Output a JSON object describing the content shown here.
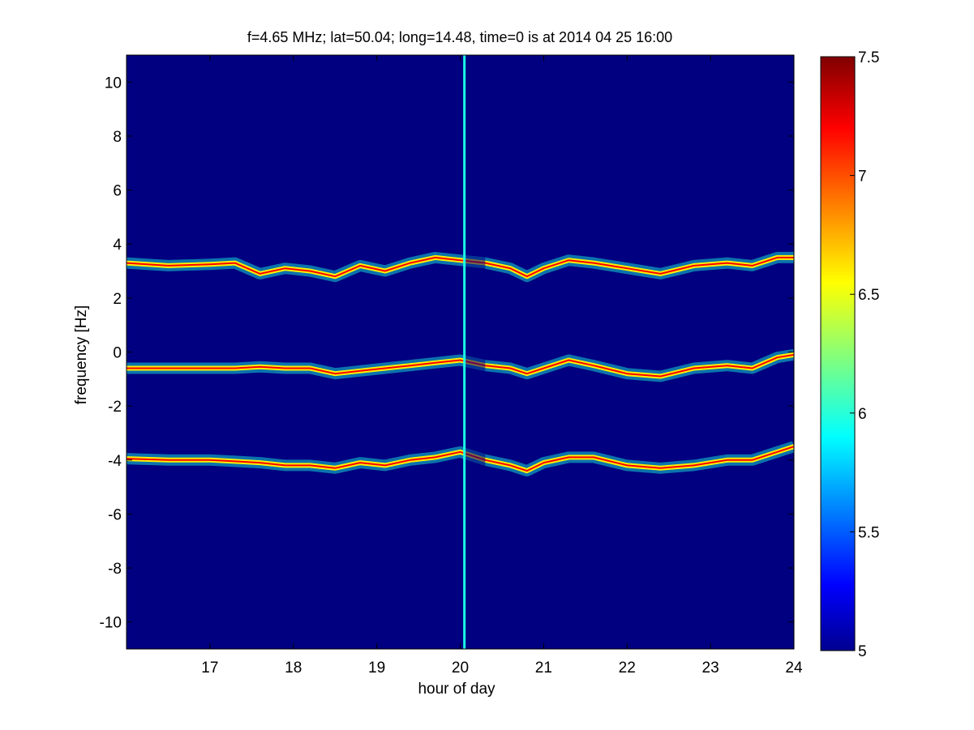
{
  "chart_data": {
    "type": "heatmap",
    "title": "f=4.65 MHz;  lat=50.04; long=14.48, time=0 is at 2014 04 25 16:00",
    "xlabel": "hour of day",
    "ylabel": "frequency [Hz]",
    "xlim": [
      16.0,
      24.0
    ],
    "ylim": [
      -11.0,
      11.0
    ],
    "x_ticks": [
      17,
      18,
      19,
      20,
      21,
      22,
      23,
      24
    ],
    "y_ticks": [
      -10,
      -8,
      -6,
      -4,
      -2,
      0,
      2,
      4,
      6,
      8,
      10
    ],
    "colorbar": {
      "range": [
        5,
        7.5
      ],
      "ticks": [
        "5",
        "5.5",
        "6",
        "6.5",
        "7",
        "7.5"
      ],
      "colormap": "jet"
    },
    "background_level": 5,
    "vertical_line": {
      "x": 20.05,
      "level": 6
    },
    "gap": {
      "x_start": 20.05,
      "x_end": 20.3
    },
    "traces": [
      {
        "name": "upper",
        "level": 7.2,
        "x": [
          16.0,
          16.5,
          17.0,
          17.3,
          17.6,
          17.9,
          18.2,
          18.5,
          18.8,
          19.1,
          19.4,
          19.7,
          20.0,
          20.3,
          20.6,
          20.8,
          21.0,
          21.3,
          21.6,
          22.0,
          22.4,
          22.8,
          23.2,
          23.5,
          23.8,
          24.0
        ],
        "y": [
          3.3,
          3.2,
          3.25,
          3.3,
          2.9,
          3.1,
          3.0,
          2.8,
          3.2,
          3.0,
          3.3,
          3.5,
          3.4,
          3.3,
          3.1,
          2.8,
          3.1,
          3.4,
          3.3,
          3.1,
          2.9,
          3.2,
          3.3,
          3.2,
          3.5,
          3.5
        ]
      },
      {
        "name": "middle",
        "level": 7.2,
        "x": [
          16.0,
          16.5,
          17.0,
          17.3,
          17.6,
          17.9,
          18.2,
          18.5,
          18.8,
          19.1,
          19.4,
          19.7,
          20.0,
          20.3,
          20.6,
          20.8,
          21.0,
          21.3,
          21.6,
          22.0,
          22.4,
          22.8,
          23.2,
          23.5,
          23.8,
          24.0
        ],
        "y": [
          -0.6,
          -0.6,
          -0.6,
          -0.6,
          -0.55,
          -0.6,
          -0.6,
          -0.8,
          -0.7,
          -0.6,
          -0.5,
          -0.4,
          -0.3,
          -0.5,
          -0.6,
          -0.8,
          -0.6,
          -0.3,
          -0.5,
          -0.8,
          -0.9,
          -0.6,
          -0.5,
          -0.6,
          -0.2,
          -0.1
        ]
      },
      {
        "name": "lower",
        "level": 7.2,
        "x": [
          16.0,
          16.5,
          17.0,
          17.3,
          17.6,
          17.9,
          18.2,
          18.5,
          18.8,
          19.1,
          19.4,
          19.7,
          20.0,
          20.3,
          20.6,
          20.8,
          21.0,
          21.3,
          21.6,
          22.0,
          22.4,
          22.8,
          23.2,
          23.5,
          23.8,
          24.0
        ],
        "y": [
          -3.95,
          -4.0,
          -4.0,
          -4.05,
          -4.1,
          -4.2,
          -4.2,
          -4.3,
          -4.1,
          -4.2,
          -4.0,
          -3.9,
          -3.7,
          -4.0,
          -4.2,
          -4.4,
          -4.1,
          -3.9,
          -3.9,
          -4.2,
          -4.3,
          -4.2,
          -4.0,
          -4.0,
          -3.7,
          -3.5
        ]
      }
    ]
  }
}
